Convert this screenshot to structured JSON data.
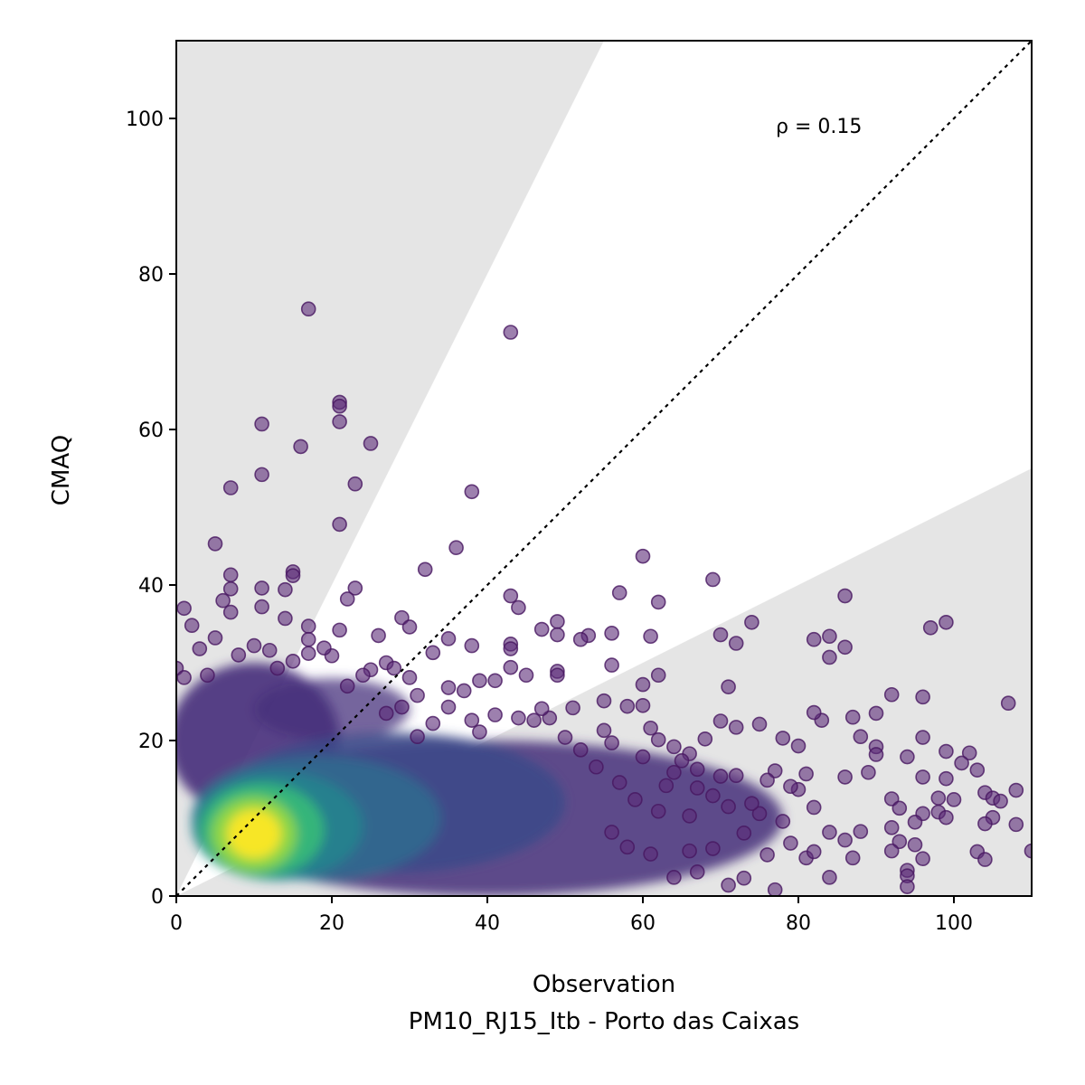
{
  "chart_data": {
    "type": "scatter",
    "title": "",
    "xlabel": "Observation",
    "xlabel_sub": "PM10_RJ15_Itb - Porto das Caixas",
    "ylabel": "CMAQ",
    "xlim": [
      0,
      110
    ],
    "ylim": [
      0,
      110
    ],
    "xticks": [
      "0",
      "20",
      "40",
      "60",
      "80",
      "100"
    ],
    "yticks": [
      "0",
      "20",
      "40",
      "60",
      "80",
      "100"
    ],
    "annotation": "ρ = 0.15",
    "reference_line": "1:1 dotted",
    "shaded_regions": "outside factor-of-2 band (y > 2x and y < 0.5x)",
    "colormap": "viridis density",
    "colors": {
      "dark": "#440154",
      "mid": "#3b528b",
      "teal": "#21918c",
      "green": "#5ec962",
      "yellow": "#fde725",
      "shade": "#e5e5e5"
    },
    "outliers": [
      [
        17,
        75.5
      ],
      [
        43,
        72.5
      ],
      [
        21,
        63.5
      ],
      [
        21,
        63
      ],
      [
        11,
        60.7
      ],
      [
        21,
        61
      ],
      [
        16,
        57.8
      ],
      [
        25,
        58.2
      ],
      [
        11,
        54.2
      ],
      [
        23,
        53
      ],
      [
        7,
        52.5
      ],
      [
        38,
        52
      ],
      [
        21,
        47.8
      ],
      [
        5,
        45.3
      ],
      [
        36,
        44.8
      ],
      [
        60,
        43.7
      ],
      [
        15,
        41.7
      ],
      [
        15,
        41.2
      ],
      [
        7,
        41.3
      ],
      [
        32,
        42
      ],
      [
        69,
        40.7
      ],
      [
        7,
        39.5
      ],
      [
        11,
        39.6
      ],
      [
        23,
        39.6
      ],
      [
        14,
        39.4
      ],
      [
        57,
        39
      ],
      [
        43,
        38.6
      ],
      [
        86,
        38.6
      ],
      [
        6,
        38
      ],
      [
        22,
        38.2
      ],
      [
        62,
        37.8
      ],
      [
        11,
        37.2
      ],
      [
        44,
        37.1
      ],
      [
        1,
        37
      ],
      [
        7,
        36.5
      ],
      [
        29,
        35.8
      ],
      [
        49,
        35.3
      ],
      [
        74,
        35.2
      ],
      [
        99,
        35.2
      ],
      [
        97,
        34.5
      ],
      [
        14,
        35.7
      ],
      [
        47,
        34.3
      ],
      [
        30,
        34.6
      ],
      [
        21,
        34.2
      ],
      [
        17,
        34.7
      ],
      [
        56,
        33.8
      ],
      [
        53,
        33.5
      ],
      [
        82,
        33
      ],
      [
        84,
        33.4
      ],
      [
        26,
        33.5
      ],
      [
        49,
        33.6
      ],
      [
        61,
        33.4
      ],
      [
        52,
        33
      ],
      [
        70,
        33.6
      ],
      [
        35,
        33.1
      ],
      [
        17,
        33
      ],
      [
        86,
        32
      ],
      [
        43,
        32.4
      ],
      [
        43,
        31.8
      ],
      [
        38,
        32.2
      ],
      [
        33,
        31.3
      ],
      [
        72,
        32.5
      ],
      [
        84,
        30.7
      ],
      [
        27,
        30
      ],
      [
        43,
        29.4
      ],
      [
        49,
        28.9
      ],
      [
        49,
        28.4
      ],
      [
        62,
        28.4
      ],
      [
        56,
        29.7
      ],
      [
        45,
        28.4
      ],
      [
        39,
        27.7
      ],
      [
        41,
        27.7
      ],
      [
        60,
        27.2
      ],
      [
        71,
        26.9
      ],
      [
        35,
        26.8
      ],
      [
        37,
        26.4
      ],
      [
        92,
        25.9
      ],
      [
        96,
        25.6
      ],
      [
        107,
        24.8
      ],
      [
        55,
        25.1
      ],
      [
        83,
        22.6
      ],
      [
        82,
        23.6
      ],
      [
        87,
        23
      ],
      [
        90,
        23.5
      ],
      [
        78,
        20.3
      ],
      [
        88,
        20.5
      ],
      [
        70,
        22.5
      ],
      [
        75,
        22.1
      ],
      [
        72,
        21.7
      ],
      [
        96,
        20.4
      ],
      [
        80,
        19.3
      ],
      [
        90,
        19.2
      ],
      [
        99,
        18.6
      ],
      [
        94,
        17.9
      ],
      [
        102,
        18.4
      ],
      [
        90,
        18.2
      ],
      [
        101,
        17.1
      ],
      [
        103,
        16.2
      ],
      [
        77,
        16.1
      ],
      [
        81,
        15.7
      ],
      [
        86,
        15.3
      ],
      [
        96,
        15.3
      ],
      [
        99,
        15.1
      ],
      [
        89,
        15.9
      ],
      [
        104,
        13.3
      ],
      [
        108,
        13.6
      ],
      [
        105,
        12.6
      ],
      [
        106,
        12.2
      ],
      [
        100,
        12.4
      ],
      [
        98,
        12.6
      ],
      [
        92,
        12.5
      ],
      [
        93,
        11.3
      ],
      [
        96,
        10.6
      ],
      [
        98,
        10.8
      ],
      [
        99,
        10.1
      ],
      [
        105,
        10.1
      ],
      [
        108,
        9.2
      ],
      [
        104,
        9.3
      ],
      [
        95,
        9.5
      ],
      [
        92,
        8.8
      ],
      [
        88,
        8.3
      ],
      [
        84,
        8.2
      ],
      [
        86,
        7.2
      ],
      [
        93,
        7
      ],
      [
        95,
        6.6
      ],
      [
        92,
        5.8
      ],
      [
        103,
        5.7
      ],
      [
        104,
        4.7
      ],
      [
        110,
        5.8
      ],
      [
        87,
        4.9
      ],
      [
        96,
        4.8
      ],
      [
        94,
        3.3
      ],
      [
        94,
        2.6
      ],
      [
        94,
        1.2
      ],
      [
        84,
        2.4
      ],
      [
        77,
        0.8
      ],
      [
        71,
        1.4
      ],
      [
        73,
        2.3
      ],
      [
        67,
        3.1
      ],
      [
        64,
        2.4
      ],
      [
        61,
        5.4
      ],
      [
        58,
        6.3
      ],
      [
        56,
        8.2
      ],
      [
        66,
        5.8
      ],
      [
        69,
        6.1
      ],
      [
        76,
        5.3
      ],
      [
        79,
        6.8
      ],
      [
        81,
        4.9
      ],
      [
        82,
        5.7
      ],
      [
        73,
        8.1
      ],
      [
        78,
        9.6
      ],
      [
        75,
        10.6
      ],
      [
        82,
        11.4
      ],
      [
        80,
        13.7
      ],
      [
        79,
        14.1
      ],
      [
        76,
        14.9
      ],
      [
        72,
        15.5
      ],
      [
        70,
        15.4
      ],
      [
        67,
        16.3
      ],
      [
        66,
        18.3
      ],
      [
        64,
        19.2
      ],
      [
        68,
        20.2
      ],
      [
        58,
        24.4
      ],
      [
        60,
        24.5
      ],
      [
        61,
        21.6
      ],
      [
        65,
        17.4
      ],
      [
        63,
        14.2
      ],
      [
        69,
        12.9
      ],
      [
        71,
        11.5
      ],
      [
        74,
        11.9
      ],
      [
        66,
        10.3
      ],
      [
        62,
        10.9
      ],
      [
        59,
        12.4
      ],
      [
        57,
        14.6
      ],
      [
        54,
        16.6
      ],
      [
        52,
        18.8
      ],
      [
        50,
        20.4
      ],
      [
        48,
        22.9
      ],
      [
        47,
        24.1
      ],
      [
        44,
        22.9
      ],
      [
        41,
        23.3
      ],
      [
        39,
        21.1
      ],
      [
        38,
        22.6
      ],
      [
        35,
        24.3
      ],
      [
        33,
        22.2
      ],
      [
        31,
        20.5
      ],
      [
        29,
        24.3
      ],
      [
        27,
        23.5
      ],
      [
        31,
        25.8
      ],
      [
        30,
        28.1
      ],
      [
        28,
        29.3
      ],
      [
        25,
        29.1
      ],
      [
        24,
        28.4
      ],
      [
        22,
        27
      ],
      [
        20,
        30.9
      ],
      [
        19,
        31.9
      ],
      [
        12,
        31.6
      ],
      [
        10,
        32.2
      ],
      [
        8,
        31
      ],
      [
        5,
        33.2
      ],
      [
        3,
        31.8
      ],
      [
        2,
        34.8
      ],
      [
        0,
        29.3
      ],
      [
        1,
        28.1
      ],
      [
        4,
        28.4
      ],
      [
        17,
        31.2
      ],
      [
        15,
        30.2
      ],
      [
        13,
        29.3
      ],
      [
        46,
        22.6
      ],
      [
        51,
        24.2
      ],
      [
        55,
        21.3
      ],
      [
        56,
        19.7
      ],
      [
        60,
        17.9
      ],
      [
        62,
        20.1
      ],
      [
        64,
        15.9
      ],
      [
        67,
        13.9
      ]
    ]
  }
}
